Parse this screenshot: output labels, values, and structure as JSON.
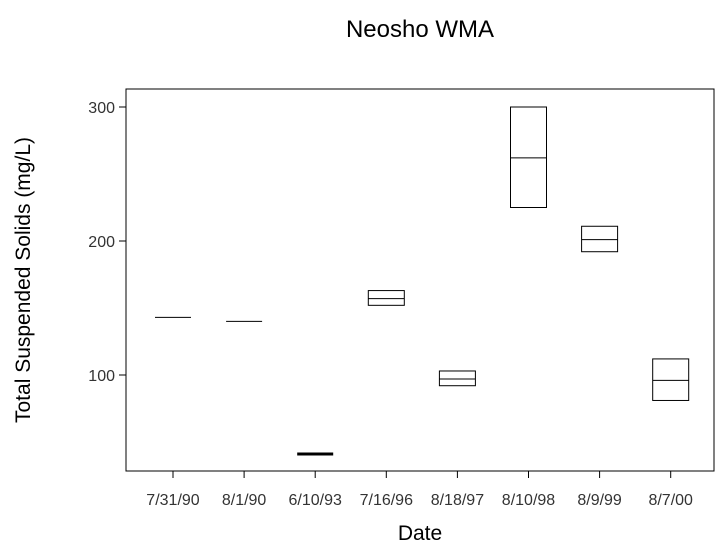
{
  "chart_data": {
    "type": "box",
    "title": "Neosho WMA",
    "xlabel": "Date",
    "ylabel": "Total Suspended Solids (mg/L)",
    "ylim": [
      30,
      300
    ],
    "yticks": [
      100,
      200,
      300
    ],
    "grid": false,
    "categories": [
      "7/31/90",
      "8/1/90",
      "6/10/93",
      "7/16/96",
      "8/18/97",
      "8/10/98",
      "8/9/99",
      "8/7/00"
    ],
    "boxes": [
      {
        "q1": 143,
        "median": 143,
        "q3": 143
      },
      {
        "q1": 140,
        "median": 140,
        "q3": 140
      },
      {
        "q1": 41,
        "median": 41,
        "q3": 41
      },
      {
        "q1": 152,
        "median": 157,
        "q3": 163
      },
      {
        "q1": 92,
        "median": 97,
        "q3": 103
      },
      {
        "q1": 225,
        "median": 262,
        "q3": 300
      },
      {
        "q1": 192,
        "median": 201,
        "q3": 211
      },
      {
        "q1": 81,
        "median": 96,
        "q3": 112
      }
    ]
  }
}
